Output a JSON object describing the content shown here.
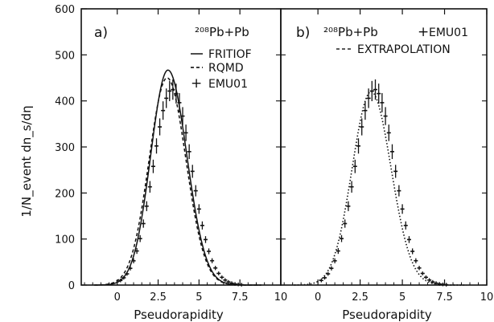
{
  "chart_data": [
    {
      "type": "line",
      "panel_label": "a)",
      "xlabel": "Pseudorapidity",
      "ylabel": "1/N_event dn_s/dη",
      "xlim": [
        -2.2,
        10
      ],
      "ylim": [
        0,
        600
      ],
      "x_ticks": [
        "0",
        "2.5",
        "5",
        "7.5",
        "10"
      ],
      "y_ticks": [
        "0",
        "100",
        "200",
        "300",
        "400",
        "500",
        "600"
      ],
      "legend": {
        "placement": "top-right",
        "title": "²⁰⁸Pb+Pb",
        "entries": [
          "FRITIOF",
          "RQMD",
          "EMU01"
        ]
      },
      "series": [
        {
          "name": "FRITIOF",
          "style": "solid",
          "peak_x": 3.1,
          "peak_y": 467,
          "sigma_left": 1.05,
          "sigma_right": 1.15
        },
        {
          "name": "RQMD",
          "style": "dashed",
          "peak_x": 3.05,
          "peak_y": 450,
          "sigma_left": 1.1,
          "sigma_right": 1.15
        },
        {
          "name": "EMU01",
          "style": "points-with-errors",
          "x_start": 0.2,
          "x_end": 7.6,
          "step": 0.2,
          "peak_x": 3.35,
          "peak_y": 425,
          "sigma_left": 1.15,
          "sigma_right": 1.2
        }
      ]
    },
    {
      "type": "line",
      "panel_label": "b)",
      "xlabel": "Pseudorapidity",
      "xlim": [
        -2.2,
        10
      ],
      "ylim": [
        0,
        600
      ],
      "x_ticks": [
        "0",
        "2.5",
        "5",
        "7.5",
        "10"
      ],
      "legend": {
        "placement": "top-right",
        "title": "²⁰⁸Pb+Pb",
        "entries": [
          "EMU01",
          "EXTRAPOLATION"
        ]
      },
      "series": [
        {
          "name": "EMU01",
          "style": "points-with-errors",
          "x_start": 0.2,
          "x_end": 7.6,
          "step": 0.2,
          "peak_x": 3.35,
          "peak_y": 425,
          "sigma_left": 1.15,
          "sigma_right": 1.2
        },
        {
          "name": "EXTRAPOLATION",
          "style": "dotted",
          "peak_x": 3.15,
          "peak_y": 420,
          "sigma_left": 1.12,
          "sigma_right": 1.18
        }
      ]
    }
  ]
}
